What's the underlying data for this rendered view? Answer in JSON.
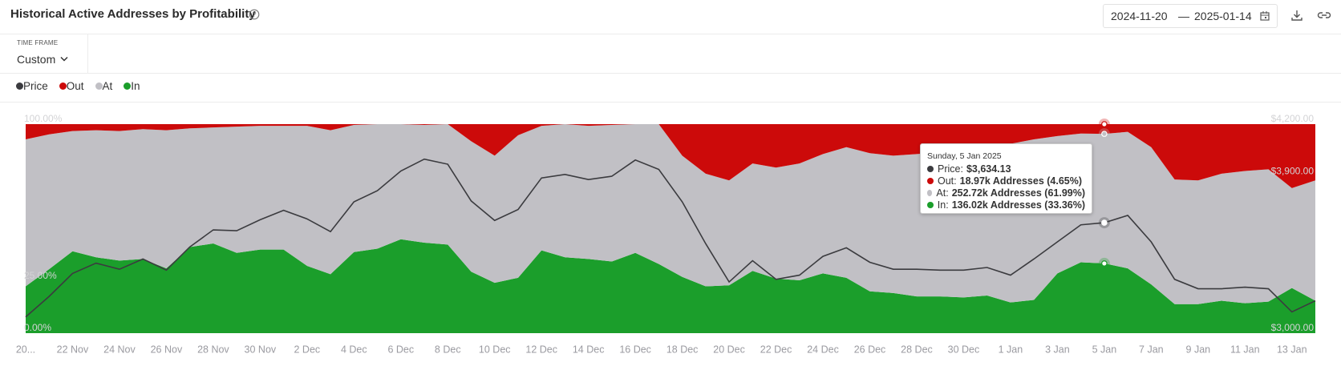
{
  "header": {
    "title": "Historical Active Addresses by Profitability",
    "date_from": "2024-11-20",
    "date_separator": "—",
    "date_to": "2025-01-14"
  },
  "timeframe": {
    "label": "TIME FRAME",
    "value": "Custom"
  },
  "tooltip": {
    "title": "Sunday, 5 Jan 2025",
    "rows": [
      {
        "label": "Price:",
        "value": "$3,634.13"
      },
      {
        "label": "Out:",
        "value": "18.97k Addresses (4.65%)"
      },
      {
        "label": "At:",
        "value": "252.72k Addresses (61.99%)"
      },
      {
        "label": "In:",
        "value": "136.02k Addresses (33.36%)"
      }
    ]
  },
  "chart_data": {
    "type": "stacked-area",
    "categories": [
      "20...",
      null,
      "22 Nov",
      null,
      "24 Nov",
      null,
      "26 Nov",
      null,
      "28 Nov",
      null,
      "30 Nov",
      null,
      "2 Dec",
      null,
      "4 Dec",
      null,
      "6 Dec",
      null,
      "8 Dec",
      null,
      "10 Dec",
      null,
      "12 Dec",
      null,
      "14 Dec",
      null,
      "16 Dec",
      null,
      "18 Dec",
      null,
      "20 Dec",
      null,
      "22 Dec",
      null,
      "24 Dec",
      null,
      "26 Dec",
      null,
      "28 Dec",
      null,
      "30 Dec",
      null,
      "1 Jan",
      null,
      "3 Jan",
      null,
      "5 Jan",
      null,
      "7 Jan",
      null,
      "9 Jan",
      null,
      "11 Jan",
      null,
      "13 Jan",
      null
    ],
    "series": [
      {
        "name": "Price",
        "color": "#3b3b3f",
        "axis": "y2",
        "type": "line",
        "values": [
          3093,
          3211,
          3343,
          3402,
          3367,
          3426,
          3362,
          3495,
          3593,
          3588,
          3651,
          3705,
          3656,
          3583,
          3754,
          3818,
          3931,
          3999,
          3970,
          3759,
          3647,
          3710,
          3891,
          3911,
          3882,
          3901,
          3994,
          3940,
          3754,
          3514,
          3294,
          3416,
          3309,
          3333,
          3441,
          3490,
          3407,
          3367,
          3367,
          3362,
          3362,
          3377,
          3333,
          3426,
          3524,
          3622,
          3634.13,
          3676,
          3524,
          3309,
          3255,
          3255,
          3264,
          3255,
          3122,
          3186
        ]
      },
      {
        "name": "Out",
        "color": "#cc0a0a",
        "values": [
          7.3,
          4.9,
          3.3,
          2.9,
          3.3,
          2.4,
          2.9,
          2,
          1.6,
          1.2,
          0.8,
          0.8,
          0.8,
          2.9,
          0.4,
          0,
          0,
          0.4,
          0,
          8.2,
          15.1,
          5.3,
          0.8,
          0,
          0.8,
          0.4,
          0,
          0,
          15.1,
          23.7,
          26.9,
          18.8,
          20.8,
          18.8,
          14.3,
          11,
          13.9,
          15.1,
          14.3,
          13.5,
          13.1,
          10.6,
          9.4,
          7.3,
          5.7,
          4.5,
          4.65,
          3.7,
          11,
          26.5,
          26.9,
          23.7,
          22.4,
          21.6,
          30.6,
          26.9
        ]
      },
      {
        "name": "At",
        "color": "#c1c0c5",
        "values": [
          70.3,
          64.5,
          57.5,
          60.8,
          62,
          62.1,
          66.1,
          56.8,
          55.5,
          60.4,
          59.2,
          59.2,
          67,
          68.9,
          60.8,
          59.6,
          55.1,
          56.3,
          57.6,
          62.4,
          60.8,
          68.2,
          59.6,
          63.7,
          63.7,
          65.3,
          61.6,
          66.9,
          58,
          53.9,
          50.2,
          51.4,
          53.1,
          55.9,
          57.1,
          62.5,
          66.1,
          65.7,
          68.1,
          68.9,
          69.8,
          71.4,
          75.9,
          76.8,
          65.7,
          61.6,
          61.99,
          65.3,
          65.7,
          59.6,
          59.2,
          60.8,
          63.3,
          63.3,
          47.8,
          57.6
        ]
      },
      {
        "name": "In",
        "color": "#1b9e2b",
        "values": [
          22.4,
          30.6,
          39.2,
          36.3,
          34.7,
          35.5,
          31,
          41.2,
          42.9,
          38.4,
          40,
          40,
          32.2,
          28.2,
          38.8,
          40.4,
          44.9,
          43.3,
          42.4,
          29.4,
          24.1,
          26.5,
          39.6,
          36.3,
          35.5,
          34.3,
          38.4,
          33.1,
          26.9,
          22.4,
          22.9,
          29.8,
          26.1,
          25.3,
          28.6,
          26.5,
          20,
          19.2,
          17.6,
          17.6,
          17.1,
          18,
          14.7,
          15.9,
          28.6,
          33.9,
          33.36,
          31,
          23.3,
          13.9,
          13.9,
          15.5,
          14.3,
          15.1,
          21.6,
          15.5
        ]
      }
    ],
    "ylim": [
      0,
      100
    ],
    "yticks": [
      {
        "value": 0,
        "label": "0.00%"
      },
      {
        "value": 25,
        "label": "25.00%"
      },
      {
        "value": 100,
        "label": "100.00%"
      }
    ],
    "y2lim": [
      3000,
      4200
    ],
    "y2ticks": [
      {
        "value": 3000,
        "label": "$3,000.00"
      },
      {
        "value": 3900,
        "label": "$3,900.00"
      },
      {
        "value": 4200,
        "label": "$4,200.00"
      }
    ],
    "grid": false
  }
}
